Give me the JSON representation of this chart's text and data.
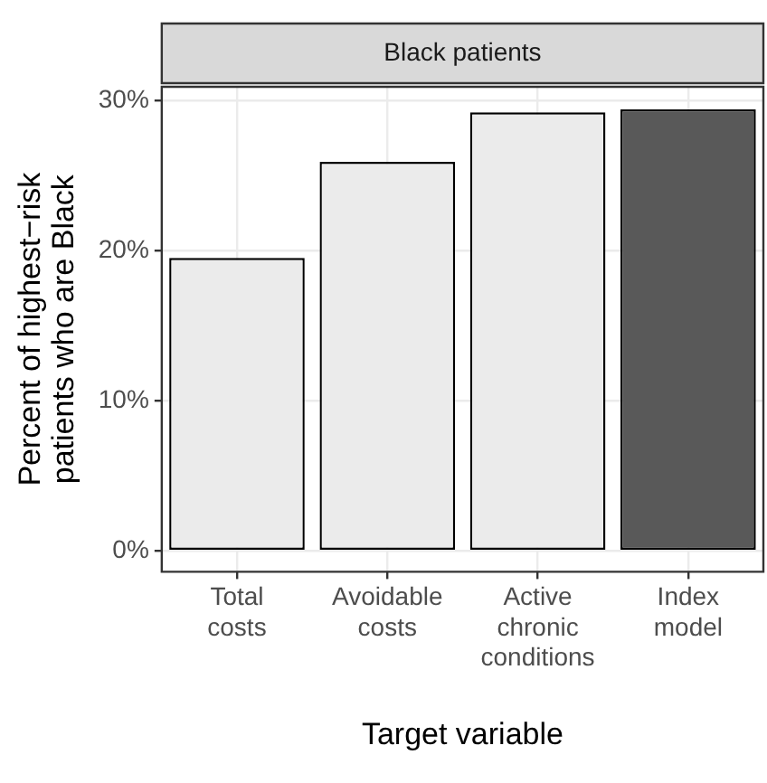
{
  "chart_data": {
    "type": "bar",
    "title": "Black patients",
    "xlabel": "Target variable",
    "ylabel": "Percent of highest−risk patients who are Black",
    "categories": [
      "Total costs",
      "Avoidable costs",
      "Active chronic conditions",
      "Index model"
    ],
    "values": [
      19.5,
      25.9,
      29.2,
      29.4
    ],
    "colors": [
      "#ebebeb",
      "#ebebeb",
      "#ebebeb",
      "#595959"
    ],
    "ylim": [
      -1.4,
      30.9
    ],
    "yticks": [
      {
        "value": 0,
        "label": "0%"
      },
      {
        "value": 10,
        "label": "10%"
      },
      {
        "value": 20,
        "label": "20%"
      },
      {
        "value": 30,
        "label": "30%"
      }
    ],
    "grid": true
  }
}
